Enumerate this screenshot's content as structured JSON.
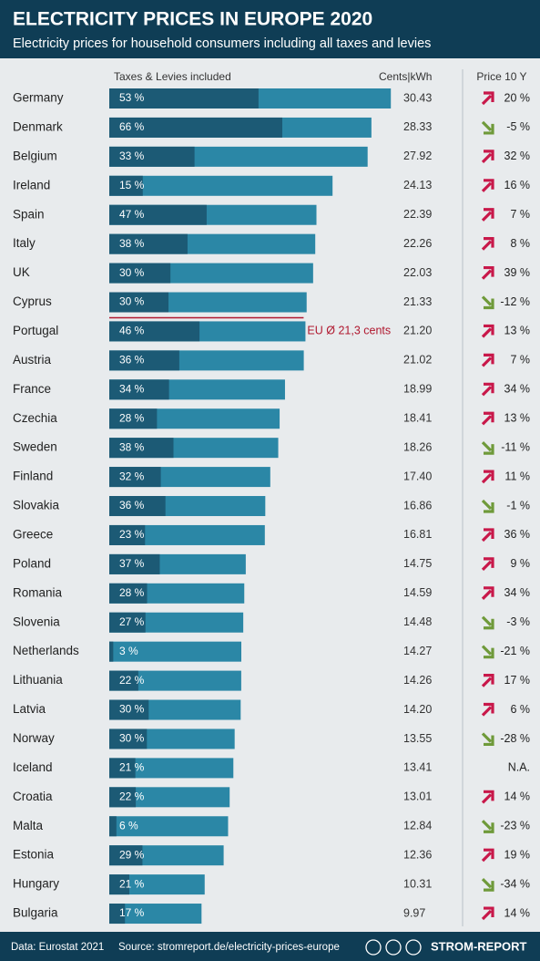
{
  "chart_data": {
    "type": "bar",
    "orientation": "horizontal",
    "title": "ELECTRICITY PRICES IN EUROPE 2020",
    "subtitle": "Electricity prices for household consumers including all taxes and levies",
    "categories": [
      "Germany",
      "Denmark",
      "Belgium",
      "Ireland",
      "Spain",
      "Italy",
      "UK",
      "Cyprus",
      "Portugal",
      "Austria",
      "France",
      "Czechia",
      "Sweden",
      "Finland",
      "Slovakia",
      "Greece",
      "Poland",
      "Romania",
      "Slovenia",
      "Netherlands",
      "Lithuania",
      "Latvia",
      "Norway",
      "Iceland",
      "Croatia",
      "Malta",
      "Estonia",
      "Hungary",
      "Bulgaria"
    ],
    "series": [
      {
        "name": "Cents|kWh",
        "color": "#2b87a6",
        "values": [
          30.43,
          28.33,
          27.92,
          24.13,
          22.39,
          22.26,
          22.03,
          21.33,
          21.2,
          21.02,
          18.99,
          18.41,
          18.26,
          17.4,
          16.86,
          16.81,
          14.75,
          14.59,
          14.48,
          14.27,
          14.26,
          14.2,
          13.55,
          13.41,
          13.01,
          12.84,
          12.36,
          10.31,
          9.97
        ],
        "value_labels": [
          "30.43",
          "28.33",
          "27.92",
          "24.13",
          "22.39",
          "22.26",
          "22.03",
          "21.33",
          "21.20",
          "21.02",
          "18.99",
          "18.41",
          "18.26",
          "17.40",
          "16.86",
          "16.81",
          "14.75",
          "14.59",
          "14.48",
          "14.27",
          "14.26",
          "14.20",
          "13.55",
          "13.41",
          "13.01",
          "12.84",
          "12.36",
          "10.31",
          "9.97"
        ]
      },
      {
        "name": "Taxes & Levies included",
        "color": "#1c5a75",
        "values": [
          53,
          66,
          33,
          15,
          47,
          38,
          30,
          30,
          46,
          36,
          34,
          28,
          38,
          32,
          36,
          23,
          37,
          28,
          27,
          3,
          22,
          30,
          30,
          21,
          22,
          6,
          29,
          21,
          17
        ],
        "value_labels": [
          "53 %",
          "66 %",
          "33 %",
          "15 %",
          "47 %",
          "38 %",
          "30 %",
          "30 %",
          "46 %",
          "36 %",
          "34 %",
          "28 %",
          "38 %",
          "32 %",
          "36 %",
          "23 %",
          "37 %",
          "28 %",
          "27 %",
          "3 %",
          "22 %",
          "30 %",
          "30 %",
          "21 %",
          "22 %",
          "6 %",
          "29 %",
          "21 %",
          "17 %"
        ]
      },
      {
        "name": "Price 10 Y",
        "values": [
          20,
          -5,
          32,
          16,
          7,
          8,
          39,
          -12,
          13,
          7,
          34,
          13,
          -11,
          11,
          -1,
          36,
          9,
          34,
          -3,
          -21,
          17,
          6,
          -28,
          null,
          14,
          -23,
          19,
          -34,
          14
        ],
        "value_labels": [
          "20 %",
          "-5 %",
          "32 %",
          "16 %",
          "7 %",
          "8 %",
          "39 %",
          "-12 %",
          "13 %",
          "7 %",
          "34 %",
          "13 %",
          "-11 %",
          "11 %",
          "-1 %",
          "36 %",
          "9 %",
          "34 %",
          "-3 %",
          "-21 %",
          "17 %",
          "6 %",
          "-28 %",
          "N.A.",
          "14 %",
          "-23 %",
          "19 %",
          "-34 %",
          "14 %"
        ]
      }
    ],
    "up_color": "#c8184a",
    "down_color": "#6f9a3a",
    "xlim": [
      0,
      31
    ],
    "eu_average": {
      "value": 21.3,
      "label": "EU Ø 21,3 cents",
      "color": "#b0182f"
    },
    "footer": {
      "data": "Data: Eurostat 2021",
      "source": "Source: stromreport.de/electricity-prices-europe",
      "brand": "STROM-REPORT"
    }
  }
}
